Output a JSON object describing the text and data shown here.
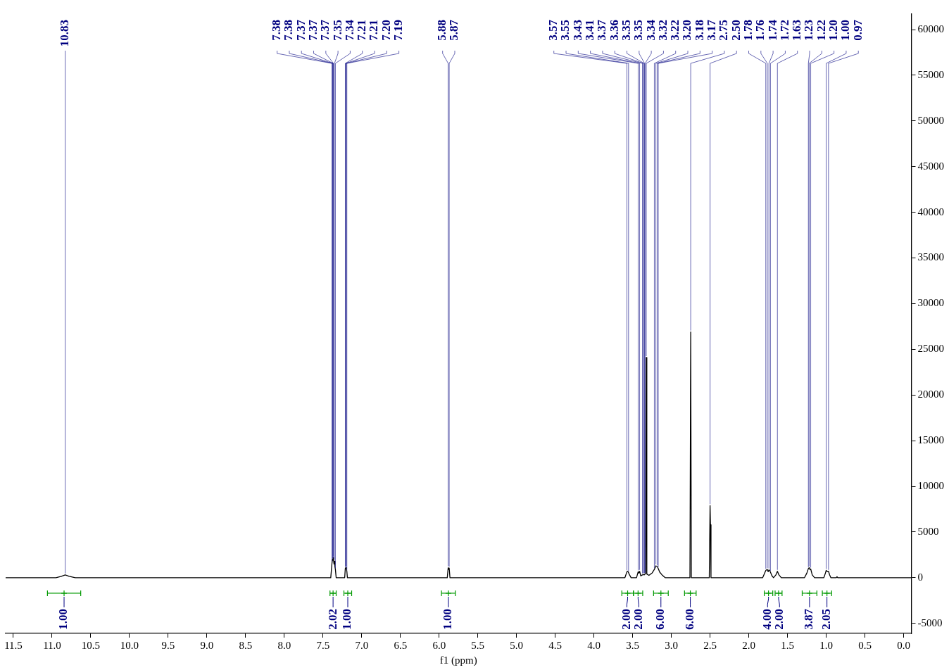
{
  "chart_data": {
    "type": "line",
    "xlabel": "f1 (ppm)",
    "xlim": [
      11.6,
      -0.1
    ],
    "ylim": [
      -6100,
      61700
    ],
    "xticks": [
      {
        "value": 11.5,
        "label": "11.5"
      },
      {
        "value": 11,
        "label": "11.0"
      },
      {
        "value": 10.5,
        "label": "10.5"
      },
      {
        "value": 10,
        "label": "10.0"
      },
      {
        "value": 9.5,
        "label": "9.5"
      },
      {
        "value": 9,
        "label": "9.0"
      },
      {
        "value": 8.5,
        "label": "8.5"
      },
      {
        "value": 8,
        "label": "8.0"
      },
      {
        "value": 7.5,
        "label": "7.5"
      },
      {
        "value": 7,
        "label": "7.0"
      },
      {
        "value": 6.5,
        "label": "6.5"
      },
      {
        "value": 6,
        "label": "6.0"
      },
      {
        "value": 5.5,
        "label": "5.5"
      },
      {
        "value": 5,
        "label": "5.0"
      },
      {
        "value": 4.5,
        "label": "4.5"
      },
      {
        "value": 4,
        "label": "4.0"
      },
      {
        "value": 3.5,
        "label": "3.5"
      },
      {
        "value": 3,
        "label": "3.0"
      },
      {
        "value": 2.5,
        "label": "2.5"
      },
      {
        "value": 2,
        "label": "2.0"
      },
      {
        "value": 1.5,
        "label": "1.5"
      },
      {
        "value": 1,
        "label": "1.0"
      },
      {
        "value": 0.5,
        "label": "0.5"
      },
      {
        "value": 0,
        "label": "0.0"
      }
    ],
    "yticks": [
      -5000,
      0,
      5000,
      10000,
      15000,
      20000,
      25000,
      30000,
      35000,
      40000,
      45000,
      50000,
      55000,
      60000
    ],
    "grid": false,
    "legend": false,
    "marker": "none",
    "line_style": "solid",
    "series": [
      {
        "color": "#000000",
        "x": [
          11.6,
          10.95,
          10.88,
          10.83,
          10.78,
          10.7,
          7.4,
          7.384,
          7.378,
          7.373,
          7.369,
          7.365,
          7.358,
          7.352,
          7.346,
          7.34,
          7.33,
          7.22,
          7.212,
          7.206,
          7.199,
          7.192,
          7.185,
          5.895,
          5.883,
          5.876,
          5.87,
          5.86,
          3.6,
          3.574,
          3.563,
          3.553,
          3.54,
          3.52,
          3.45,
          3.429,
          3.42,
          3.41,
          3.395,
          3.374,
          3.361,
          3.352,
          3.346,
          3.339,
          3.331,
          3.324,
          3.317,
          3.29,
          3.25,
          3.22,
          3.2,
          3.18,
          3.17,
          3.15,
          3.12,
          3.08,
          2.76,
          2.75,
          2.742,
          2.51,
          2.5,
          2.495,
          2.488,
          1.82,
          1.78,
          1.77,
          1.76,
          1.75,
          1.74,
          1.73,
          1.72,
          1.7,
          1.68,
          1.65,
          1.63,
          1.61,
          1.58,
          1.28,
          1.25,
          1.23,
          1.22,
          1.21,
          1.2,
          1.18,
          1.15,
          1.03,
          1.01,
          1,
          0.985,
          0.97,
          0.955,
          0.94,
          0.87,
          0.86,
          0.85,
          -0.1
        ],
        "values": [
          0,
          0,
          150,
          300,
          150,
          0,
          0,
          1600,
          2000,
          1900,
          2200,
          2000,
          1500,
          1800,
          1200,
          900,
          0,
          0,
          1000,
          1100,
          1050,
          700,
          0,
          0,
          1100,
          900,
          1050,
          0,
          0,
          650,
          700,
          550,
          300,
          0,
          0,
          650,
          500,
          700,
          200,
          300,
          350,
          300,
          350,
          400,
          500,
          24100,
          400,
          250,
          500,
          900,
          1300,
          1200,
          1000,
          600,
          300,
          0,
          0,
          26900,
          0,
          0,
          7900,
          5800,
          0,
          0,
          800,
          850,
          900,
          650,
          850,
          800,
          600,
          200,
          0,
          300,
          700,
          300,
          0,
          0,
          500,
          1000,
          1100,
          900,
          950,
          300,
          0,
          0,
          500,
          800,
          650,
          700,
          300,
          0,
          0,
          100,
          0,
          0
        ]
      },
      {
        "type": "scatter",
        "color": "#009900",
        "marker": "cross",
        "x": [
          10.845,
          7.37,
          7.18,
          5.88,
          3.565,
          3.43,
          3.135,
          2.755,
          1.745,
          1.615,
          1.215,
          0.99
        ],
        "values": [
          -1700,
          -1700,
          -1700,
          -1700,
          -1700,
          -1700,
          -1700,
          -1700,
          -1700,
          -1700,
          -1700,
          -1700
        ],
        "xerrors": [
          [
            10.63,
            11.06
          ],
          [
            7.33,
            7.41
          ],
          [
            7.13,
            7.23
          ],
          [
            5.79,
            5.97
          ],
          [
            3.49,
            3.64
          ],
          [
            3.37,
            3.49
          ],
          [
            3.04,
            3.23
          ],
          [
            2.68,
            2.83
          ],
          [
            1.69,
            1.8
          ],
          [
            1.57,
            1.66
          ],
          [
            1.12,
            1.31
          ],
          [
            0.93,
            1.05
          ]
        ]
      }
    ],
    "annotations": [
      {
        "text": "1.00",
        "x": 10.845,
        "y": -1700
      },
      {
        "text": "2.02",
        "x": 7.37,
        "y": -1700
      },
      {
        "text": "1.00",
        "x": 7.18,
        "y": -1700
      },
      {
        "text": "1.00",
        "x": 5.88,
        "y": -1700
      },
      {
        "text": "2.00",
        "x": 3.565,
        "y": -1700
      },
      {
        "text": "2.00",
        "x": 3.43,
        "y": -1700
      },
      {
        "text": "6.00",
        "x": 3.135,
        "y": -1700
      },
      {
        "text": "6.00",
        "x": 2.755,
        "y": -1700
      },
      {
        "text": "4.00",
        "x": 1.745,
        "y": -1700
      },
      {
        "text": "2.00",
        "x": 1.615,
        "y": -1700
      },
      {
        "text": "3.87",
        "x": 1.215,
        "y": -1700
      },
      {
        "text": "2.05",
        "x": 0.99,
        "y": -1700
      },
      {
        "text": "10.83",
        "x": 10.83,
        "y": 300
      },
      {
        "text": "7.38",
        "x": 7.384,
        "y": 1600
      },
      {
        "text": "7.38",
        "x": 7.378,
        "y": 2000
      },
      {
        "text": "7.37",
        "x": 7.373,
        "y": 1900
      },
      {
        "text": "7.37",
        "x": 7.369,
        "y": 2200
      },
      {
        "text": "7.37",
        "x": 7.365,
        "y": 2000
      },
      {
        "text": "7.35",
        "x": 7.352,
        "y": 1800
      },
      {
        "text": "7.34",
        "x": 7.34,
        "y": 900
      },
      {
        "text": "7.21",
        "x": 7.212,
        "y": 1000
      },
      {
        "text": "7.21",
        "x": 7.206,
        "y": 1100
      },
      {
        "text": "7.20",
        "x": 7.199,
        "y": 1050
      },
      {
        "text": "7.19",
        "x": 7.192,
        "y": 700
      },
      {
        "text": "5.88",
        "x": 5.883,
        "y": 1100
      },
      {
        "text": "5.87",
        "x": 5.87,
        "y": 1050
      },
      {
        "text": "3.57",
        "x": 3.574,
        "y": 650
      },
      {
        "text": "3.55",
        "x": 3.553,
        "y": 550
      },
      {
        "text": "3.43",
        "x": 3.429,
        "y": 650
      },
      {
        "text": "3.41",
        "x": 3.41,
        "y": 700
      },
      {
        "text": "3.37",
        "x": 3.374,
        "y": 300
      },
      {
        "text": "3.36",
        "x": 3.361,
        "y": 350
      },
      {
        "text": "3.35",
        "x": 3.352,
        "y": 300
      },
      {
        "text": "3.35",
        "x": 3.346,
        "y": 350
      },
      {
        "text": "3.34",
        "x": 3.339,
        "y": 400
      },
      {
        "text": "3.32",
        "x": 3.324,
        "y": 24100
      },
      {
        "text": "3.22",
        "x": 3.22,
        "y": 900
      },
      {
        "text": "3.20",
        "x": 3.2,
        "y": 1300
      },
      {
        "text": "3.18",
        "x": 3.18,
        "y": 1200
      },
      {
        "text": "3.17",
        "x": 3.17,
        "y": 1000
      },
      {
        "text": "2.75",
        "x": 2.75,
        "y": 26900
      },
      {
        "text": "2.50",
        "x": 2.5,
        "y": 7900
      },
      {
        "text": "1.78",
        "x": 1.78,
        "y": 800
      },
      {
        "text": "1.76",
        "x": 1.76,
        "y": 900
      },
      {
        "text": "1.74",
        "x": 1.74,
        "y": 850
      },
      {
        "text": "1.72",
        "x": 1.72,
        "y": 600
      },
      {
        "text": "1.63",
        "x": 1.63,
        "y": 700
      },
      {
        "text": "1.23",
        "x": 1.23,
        "y": 1000
      },
      {
        "text": "1.22",
        "x": 1.22,
        "y": 1100
      },
      {
        "text": "1.20",
        "x": 1.2,
        "y": 950
      },
      {
        "text": "1.00",
        "x": 1,
        "y": 800
      },
      {
        "text": "0.97",
        "x": 0.97,
        "y": 700
      }
    ]
  }
}
